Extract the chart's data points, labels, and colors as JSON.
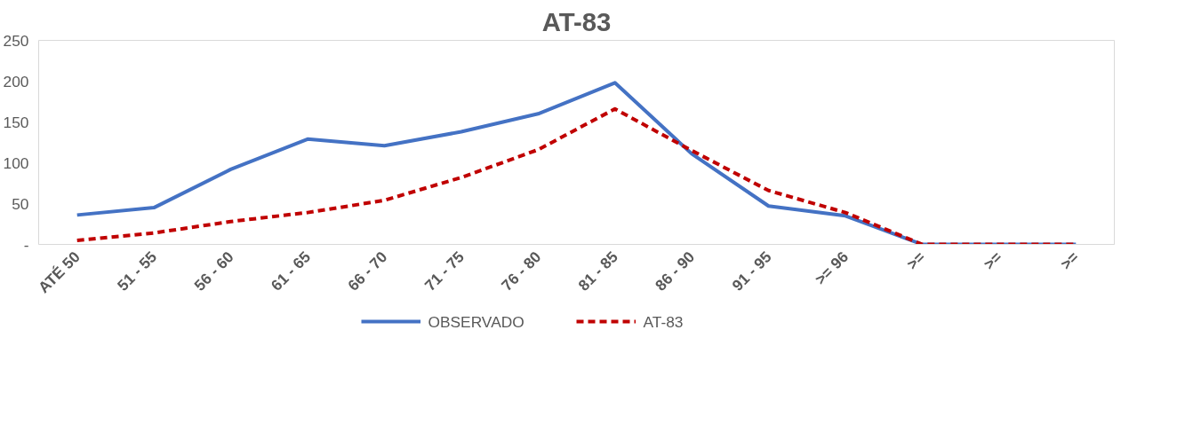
{
  "chart_data": {
    "type": "line",
    "title": "AT-83",
    "categories": [
      "ATÉ 50",
      "51 - 55",
      "56 - 60",
      "61 - 65",
      "66 - 70",
      "71 - 75",
      "76 - 80",
      "81 - 85",
      "86 - 90",
      "91 - 95",
      ">= 96",
      ">=",
      ">=",
      ">="
    ],
    "series": [
      {
        "name": "OBSERVADO",
        "color": "#4472c4",
        "line_style": "solid",
        "values": [
          36,
          45,
          92,
          129,
          121,
          138,
          160,
          198,
          111,
          47,
          35,
          0,
          0,
          0
        ]
      },
      {
        "name": "AT-83",
        "color": "#c00000",
        "line_style": "dashed",
        "values": [
          5,
          14,
          28,
          39,
          54,
          82,
          116,
          166,
          115,
          66,
          39,
          0,
          0,
          0
        ]
      }
    ],
    "ylim": [
      0,
      250
    ],
    "yticks": [
      {
        "value": 0,
        "label": "-"
      },
      50,
      100,
      150,
      200,
      250
    ],
    "grid": false,
    "legend": "bottom",
    "marker": "none"
  }
}
